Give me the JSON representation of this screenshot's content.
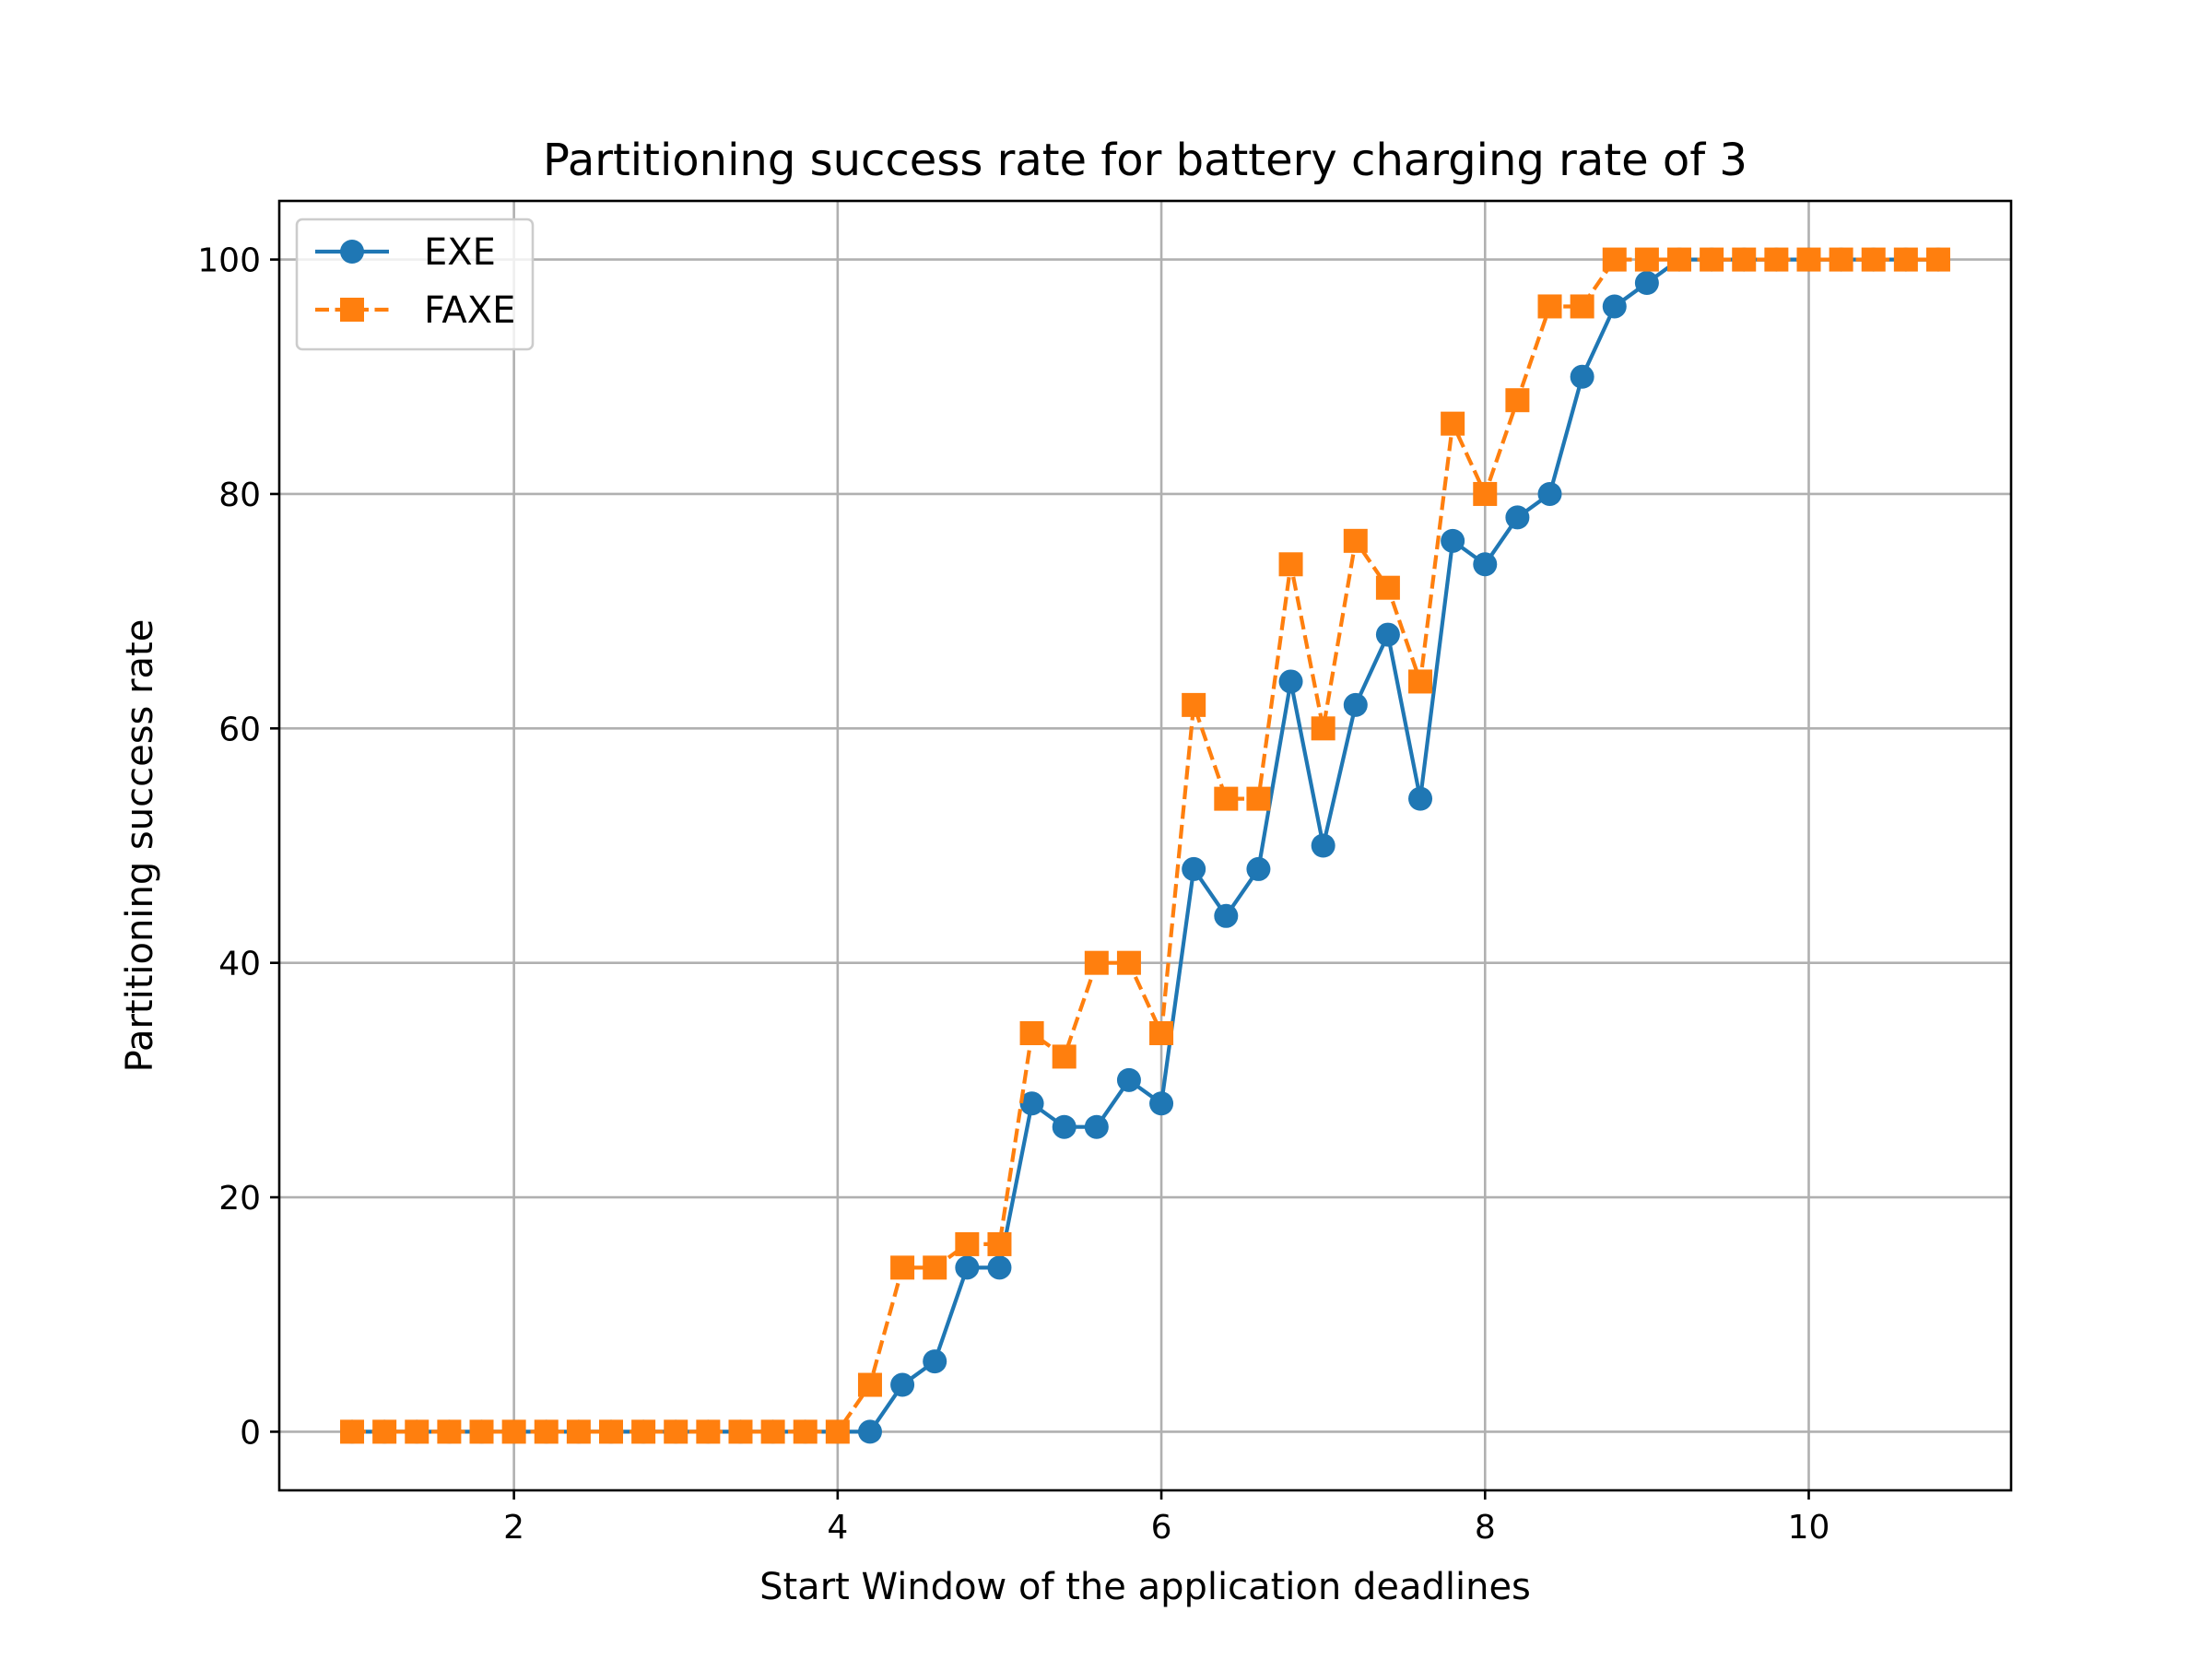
{
  "chart_data": {
    "type": "line",
    "title": "Partitioning success rate for battery charging rate of 3",
    "xlabel": "Start Window of the application deadlines",
    "ylabel": "Partitioning success rate",
    "xlim": [
      0.55,
      11.25
    ],
    "ylim": [
      -5,
      105
    ],
    "xticks": [
      2,
      4,
      6,
      8,
      10
    ],
    "yticks": [
      0,
      20,
      40,
      60,
      80,
      100
    ],
    "grid": true,
    "legend_position": "top-left",
    "x": [
      1.0,
      1.2,
      1.4,
      1.6,
      1.8,
      2.0,
      2.2,
      2.4,
      2.6,
      2.8,
      3.0,
      3.2,
      3.4,
      3.6,
      3.8,
      4.0,
      4.2,
      4.4,
      4.6,
      4.8,
      5.0,
      5.2,
      5.4,
      5.6,
      5.8,
      6.0,
      6.2,
      6.4,
      6.6,
      6.8,
      7.0,
      7.2,
      7.4,
      7.6,
      7.8,
      8.0,
      8.2,
      8.4,
      8.6,
      8.8,
      9.0,
      9.2,
      9.4,
      9.6,
      9.8,
      10.0,
      10.2,
      10.4,
      10.6,
      10.8
    ],
    "series": [
      {
        "name": "EXE",
        "color": "#1f77b4",
        "marker": "circle",
        "linestyle": "solid",
        "values": [
          0,
          0,
          0,
          0,
          0,
          0,
          0,
          0,
          0,
          0,
          0,
          0,
          0,
          0,
          0,
          0,
          0,
          4,
          6,
          14,
          14,
          28,
          26,
          26,
          30,
          28,
          48,
          44,
          48,
          64,
          50,
          62,
          68,
          54,
          76,
          74,
          78,
          80,
          90,
          96,
          98,
          100,
          100,
          100,
          100,
          100,
          100,
          100,
          100,
          100
        ]
      },
      {
        "name": "FAXE",
        "color": "#ff7f0e",
        "marker": "square",
        "linestyle": "dashed",
        "values": [
          0,
          0,
          0,
          0,
          0,
          0,
          0,
          0,
          0,
          0,
          0,
          0,
          0,
          0,
          0,
          0,
          4,
          14,
          14,
          16,
          16,
          34,
          32,
          40,
          40,
          34,
          62,
          54,
          54,
          74,
          60,
          76,
          72,
          64,
          86,
          80,
          88,
          96,
          96,
          100,
          100,
          100,
          100,
          100,
          100,
          100,
          100,
          100,
          100,
          100
        ]
      }
    ]
  }
}
